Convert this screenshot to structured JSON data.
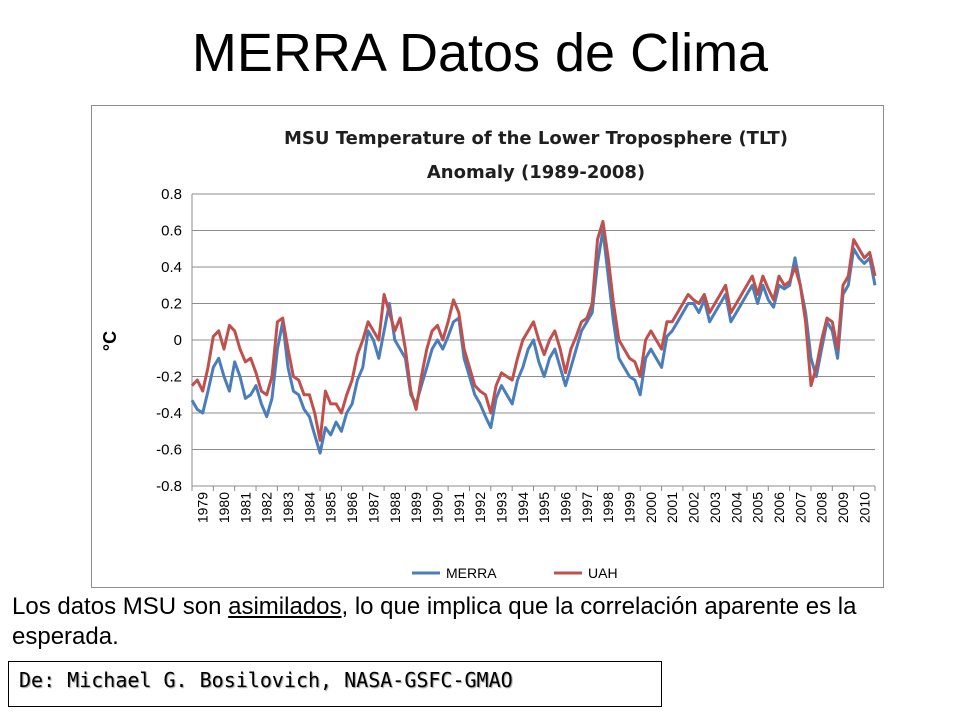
{
  "slide": {
    "title": "MERRA Datos de Clima",
    "caption": {
      "before": "Los datos MSU son ",
      "underlined": "asimilados",
      "after": ", lo que implica que la correlación aparente es la esperada."
    },
    "credit": "De: Michael G. Bosilovich, NASA-GSFC-GMAO"
  },
  "chart_data": {
    "type": "line",
    "title": "MSU Temperature of the Lower Troposphere (TLT)",
    "subtitle": "Anomaly (1989-2008)",
    "ylabel": "°C",
    "xlabel": "",
    "ylim": [
      -0.8,
      0.8
    ],
    "yticks": [
      "0.8",
      "0.6",
      "0.4",
      "0.2",
      "0",
      "-0.2",
      "-0.4",
      "-0.6",
      "-0.8"
    ],
    "x_categories": [
      "1979",
      "1980",
      "1981",
      "1982",
      "1983",
      "1984",
      "1985",
      "1986",
      "1987",
      "1988",
      "1989",
      "1990",
      "1991",
      "1992",
      "1993",
      "1994",
      "1995",
      "1996",
      "1997",
      "1998",
      "1999",
      "2000",
      "2001",
      "2002",
      "2003",
      "2004",
      "2005",
      "2006",
      "2007",
      "2008",
      "2009",
      "2010"
    ],
    "xlim": [
      1979.0,
      2011.0
    ],
    "grid": "horizontal",
    "legend": "bottom",
    "colors": {
      "MERRA": "#4a7ebb",
      "UAH": "#c0504d"
    },
    "series": [
      {
        "name": "MERRA",
        "x": [
          1979.0,
          1979.25,
          1979.5,
          1979.75,
          1980.0,
          1980.25,
          1980.5,
          1980.75,
          1981.0,
          1981.25,
          1981.5,
          1981.75,
          1982.0,
          1982.25,
          1982.5,
          1982.75,
          1983.0,
          1983.25,
          1983.5,
          1983.75,
          1984.0,
          1984.25,
          1984.5,
          1984.75,
          1985.0,
          1985.25,
          1985.5,
          1985.75,
          1986.0,
          1986.25,
          1986.5,
          1986.75,
          1987.0,
          1987.25,
          1987.5,
          1987.75,
          1988.0,
          1988.25,
          1988.5,
          1988.75,
          1989.0,
          1989.25,
          1989.5,
          1989.75,
          1990.0,
          1990.25,
          1990.5,
          1990.75,
          1991.0,
          1991.25,
          1991.5,
          1991.75,
          1992.0,
          1992.25,
          1992.5,
          1992.75,
          1993.0,
          1993.25,
          1993.5,
          1993.75,
          1994.0,
          1994.25,
          1994.5,
          1994.75,
          1995.0,
          1995.25,
          1995.5,
          1995.75,
          1996.0,
          1996.25,
          1996.5,
          1996.75,
          1997.0,
          1997.25,
          1997.5,
          1997.75,
          1998.0,
          1998.25,
          1998.5,
          1998.75,
          1999.0,
          1999.25,
          1999.5,
          1999.75,
          2000.0,
          2000.25,
          2000.5,
          2000.75,
          2001.0,
          2001.25,
          2001.5,
          2001.75,
          2002.0,
          2002.25,
          2002.5,
          2002.75,
          2003.0,
          2003.25,
          2003.5,
          2003.75,
          2004.0,
          2004.25,
          2004.5,
          2004.75,
          2005.0,
          2005.25,
          2005.5,
          2005.75,
          2006.0,
          2006.25,
          2006.5,
          2006.75,
          2007.0,
          2007.25,
          2007.5,
          2007.75,
          2008.0,
          2008.25,
          2008.5,
          2008.75,
          2009.0,
          2009.25,
          2009.5,
          2009.75,
          2010.0,
          2010.25,
          2010.5,
          2010.75,
          2011.0
        ],
        "values": [
          -0.33,
          -0.38,
          -0.4,
          -0.28,
          -0.15,
          -0.1,
          -0.2,
          -0.28,
          -0.12,
          -0.2,
          -0.32,
          -0.3,
          -0.25,
          -0.35,
          -0.42,
          -0.32,
          -0.05,
          0.1,
          -0.15,
          -0.28,
          -0.3,
          -0.38,
          -0.42,
          -0.52,
          -0.62,
          -0.48,
          -0.52,
          -0.45,
          -0.5,
          -0.4,
          -0.35,
          -0.22,
          -0.15,
          0.05,
          0.0,
          -0.1,
          0.05,
          0.2,
          0.0,
          -0.05,
          -0.1,
          -0.3,
          -0.35,
          -0.25,
          -0.15,
          -0.05,
          0.0,
          -0.05,
          0.02,
          0.1,
          0.12,
          -0.1,
          -0.2,
          -0.3,
          -0.35,
          -0.42,
          -0.48,
          -0.32,
          -0.25,
          -0.3,
          -0.35,
          -0.22,
          -0.15,
          -0.05,
          0.0,
          -0.12,
          -0.2,
          -0.1,
          -0.05,
          -0.15,
          -0.25,
          -0.15,
          -0.05,
          0.05,
          0.1,
          0.15,
          0.42,
          0.6,
          0.35,
          0.1,
          -0.1,
          -0.15,
          -0.2,
          -0.22,
          -0.3,
          -0.1,
          -0.05,
          -0.1,
          -0.15,
          0.02,
          0.05,
          0.1,
          0.15,
          0.2,
          0.2,
          0.15,
          0.22,
          0.1,
          0.15,
          0.2,
          0.25,
          0.1,
          0.15,
          0.2,
          0.25,
          0.3,
          0.2,
          0.3,
          0.22,
          0.18,
          0.3,
          0.28,
          0.3,
          0.45,
          0.3,
          0.15,
          -0.1,
          -0.2,
          -0.05,
          0.1,
          0.05,
          -0.1,
          0.25,
          0.3,
          0.5,
          0.45,
          0.42,
          0.45,
          0.3
        ]
      },
      {
        "name": "UAH",
        "x": [
          1979.0,
          1979.25,
          1979.5,
          1979.75,
          1980.0,
          1980.25,
          1980.5,
          1980.75,
          1981.0,
          1981.25,
          1981.5,
          1981.75,
          1982.0,
          1982.25,
          1982.5,
          1982.75,
          1983.0,
          1983.25,
          1983.5,
          1983.75,
          1984.0,
          1984.25,
          1984.5,
          1984.75,
          1985.0,
          1985.25,
          1985.5,
          1985.75,
          1986.0,
          1986.25,
          1986.5,
          1986.75,
          1987.0,
          1987.25,
          1987.5,
          1987.75,
          1988.0,
          1988.25,
          1988.5,
          1988.75,
          1989.0,
          1989.25,
          1989.5,
          1989.75,
          1990.0,
          1990.25,
          1990.5,
          1990.75,
          1991.0,
          1991.25,
          1991.5,
          1991.75,
          1992.0,
          1992.25,
          1992.5,
          1992.75,
          1993.0,
          1993.25,
          1993.5,
          1993.75,
          1994.0,
          1994.25,
          1994.5,
          1994.75,
          1995.0,
          1995.25,
          1995.5,
          1995.75,
          1996.0,
          1996.25,
          1996.5,
          1996.75,
          1997.0,
          1997.25,
          1997.5,
          1997.75,
          1998.0,
          1998.25,
          1998.5,
          1998.75,
          1999.0,
          1999.25,
          1999.5,
          1999.75,
          2000.0,
          2000.25,
          2000.5,
          2000.75,
          2001.0,
          2001.25,
          2001.5,
          2001.75,
          2002.0,
          2002.25,
          2002.5,
          2002.75,
          2003.0,
          2003.25,
          2003.5,
          2003.75,
          2004.0,
          2004.25,
          2004.5,
          2004.75,
          2005.0,
          2005.25,
          2005.5,
          2005.75,
          2006.0,
          2006.25,
          2006.5,
          2006.75,
          2007.0,
          2007.25,
          2007.5,
          2007.75,
          2008.0,
          2008.25,
          2008.5,
          2008.75,
          2009.0,
          2009.25,
          2009.5,
          2009.75,
          2010.0,
          2010.25,
          2010.5,
          2010.75,
          2011.0
        ],
        "values": [
          -0.25,
          -0.22,
          -0.28,
          -0.15,
          0.02,
          0.05,
          -0.05,
          0.08,
          0.05,
          -0.05,
          -0.12,
          -0.1,
          -0.18,
          -0.28,
          -0.3,
          -0.2,
          0.1,
          0.12,
          -0.05,
          -0.2,
          -0.22,
          -0.3,
          -0.3,
          -0.4,
          -0.55,
          -0.28,
          -0.35,
          -0.35,
          -0.4,
          -0.3,
          -0.22,
          -0.08,
          0.0,
          0.1,
          0.05,
          0.0,
          0.25,
          0.15,
          0.05,
          0.12,
          -0.05,
          -0.28,
          -0.38,
          -0.2,
          -0.05,
          0.05,
          0.08,
          0.0,
          0.1,
          0.22,
          0.15,
          -0.05,
          -0.15,
          -0.25,
          -0.28,
          -0.3,
          -0.4,
          -0.25,
          -0.18,
          -0.2,
          -0.22,
          -0.1,
          0.0,
          0.05,
          0.1,
          0.0,
          -0.08,
          0.0,
          0.05,
          -0.05,
          -0.18,
          -0.05,
          0.02,
          0.1,
          0.12,
          0.2,
          0.55,
          0.65,
          0.45,
          0.2,
          0.0,
          -0.05,
          -0.1,
          -0.12,
          -0.2,
          0.0,
          0.05,
          0.0,
          -0.05,
          0.1,
          0.1,
          0.15,
          0.2,
          0.25,
          0.22,
          0.2,
          0.25,
          0.15,
          0.2,
          0.25,
          0.3,
          0.15,
          0.2,
          0.25,
          0.3,
          0.35,
          0.25,
          0.35,
          0.28,
          0.22,
          0.35,
          0.3,
          0.32,
          0.4,
          0.3,
          0.1,
          -0.25,
          -0.15,
          0.0,
          0.12,
          0.1,
          -0.05,
          0.3,
          0.35,
          0.55,
          0.5,
          0.45,
          0.48,
          0.35
        ]
      }
    ]
  }
}
